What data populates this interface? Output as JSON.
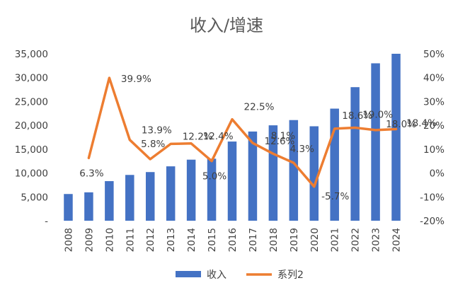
{
  "chart_data": {
    "type": "bar+line",
    "title": "收入/增速",
    "categories": [
      "2008",
      "2009",
      "2010",
      "2011",
      "2012",
      "2013",
      "2014",
      "2015",
      "2016",
      "2017",
      "2018",
      "2019",
      "2020",
      "2021",
      "2022",
      "2023",
      "2024"
    ],
    "series": [
      {
        "name": "收入",
        "type": "bar",
        "axis": "left",
        "color": "#4472C4",
        "values": [
          5600,
          5950,
          8300,
          9600,
          10200,
          11400,
          12800,
          13000,
          16600,
          18700,
          20000,
          21100,
          19800,
          23500,
          28000,
          33000,
          35000
        ]
      },
      {
        "name": "系列2",
        "type": "line",
        "axis": "right",
        "color": "#ED7D31",
        "values": [
          null,
          6.3,
          39.9,
          13.9,
          5.8,
          12.2,
          12.4,
          5.0,
          22.5,
          12.6,
          8.1,
          4.3,
          -5.7,
          18.6,
          19.0,
          18.0,
          18.4
        ],
        "labels": [
          "",
          "6.3%",
          "39.9%",
          "13.9%",
          "5.8%",
          "12.2%",
          "12.4%",
          "5.0%",
          "22.5%",
          "12.6%",
          "8.1%",
          "4.3%",
          "-5.7%",
          "18.6%",
          "19.0%",
          "18.0%",
          "18.4%"
        ]
      }
    ],
    "yleft": {
      "min": 0,
      "max": 35000,
      "ticks": [
        "-",
        "5,000",
        "10,000",
        "15,000",
        "20,000",
        "25,000",
        "30,000",
        "35,000"
      ]
    },
    "yright": {
      "min": -20,
      "max": 50,
      "ticks": [
        "-20%",
        "-10%",
        "0%",
        "10%",
        "20%",
        "30%",
        "40%",
        "50%"
      ]
    },
    "legend": {
      "position": "bottom",
      "entries": [
        "收入",
        "系列2"
      ]
    }
  }
}
